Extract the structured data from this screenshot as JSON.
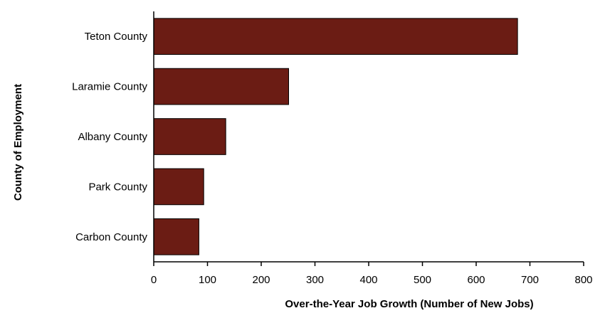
{
  "chart_data": {
    "type": "bar",
    "orientation": "horizontal",
    "title": "",
    "categories": [
      "Teton County",
      "Laramie County",
      "Albany County",
      "Park County",
      "Carbon County"
    ],
    "values": [
      677,
      251,
      134,
      93,
      84
    ],
    "xlabel": "Over-the-Year Job Growth (Number of New Jobs)",
    "ylabel": "County of Employment",
    "xlim": [
      0,
      800
    ],
    "xticks": [
      0,
      100,
      200,
      300,
      400,
      500,
      600,
      700,
      800
    ],
    "grid": false,
    "legend": "none",
    "bar_color": "#6b1c14"
  }
}
